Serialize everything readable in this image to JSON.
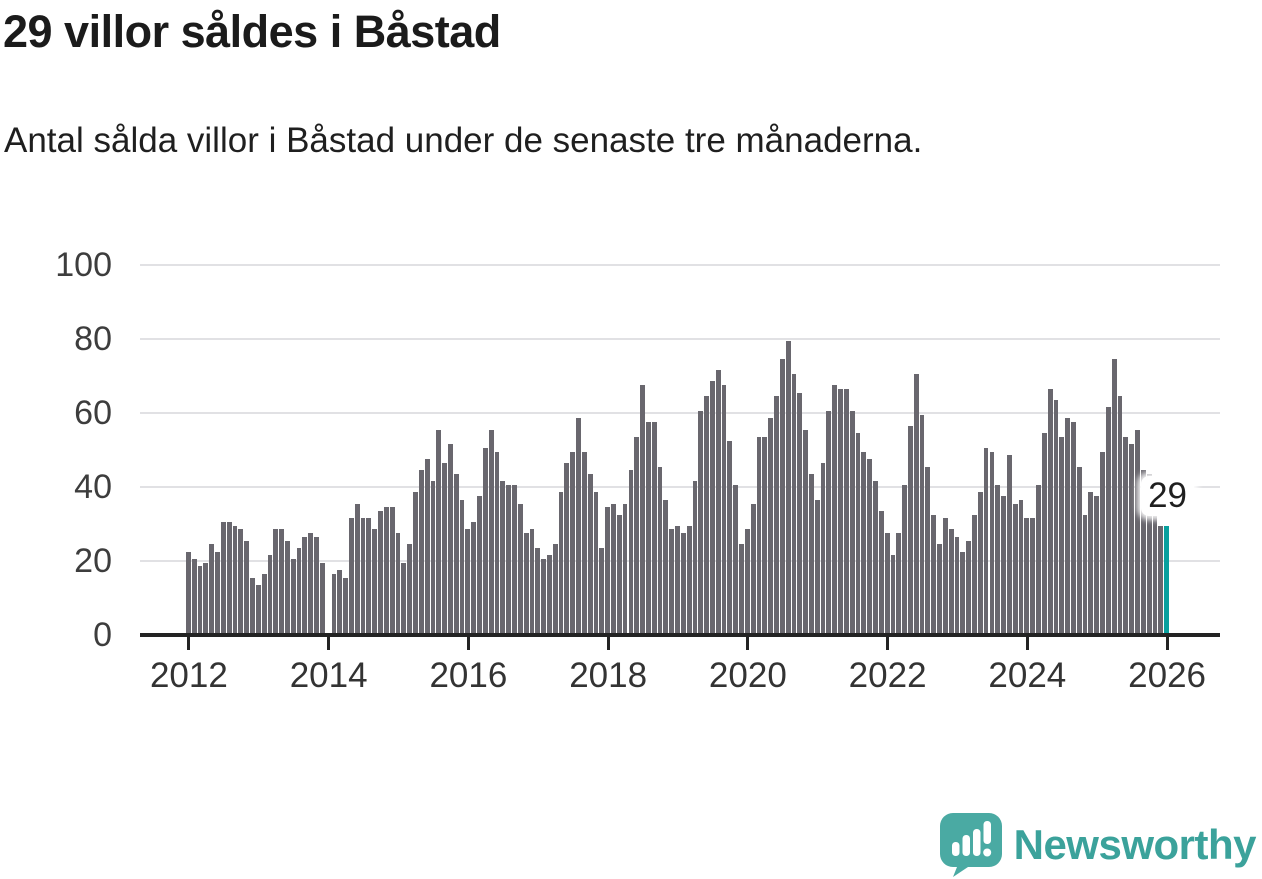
{
  "header": {
    "title": "29 villor såldes i Båstad",
    "subtitle": "Antal sålda villor i Båstad under de senaste tre månaderna."
  },
  "annotation": {
    "text": "29"
  },
  "logo": {
    "text": "Newsworthy",
    "icon": "newsworthy-speech-bubble-chart-icon"
  },
  "colors": {
    "bar": "#69676E",
    "highlight": "#08A09E",
    "gridline": "#e1e1e4",
    "axis": "#232323",
    "title_text": "#1b1b1b",
    "body_text": "#1f1f1f",
    "axis_label": "#3d3d3d",
    "logo_bubble": "#4AAAA3",
    "logo_text": "#3BA29B"
  },
  "chart_data": {
    "type": "bar",
    "title": "29 villor såldes i Båstad",
    "subtitle": "Antal sålda villor i Båstad under de senaste tre månaderna.",
    "ylabel": "",
    "xlabel": "",
    "ylim": [
      0,
      100
    ],
    "y_ticks": [
      0,
      20,
      40,
      60,
      80,
      100
    ],
    "grid": true,
    "start_month": "2012-01",
    "end_month": "2026-01",
    "frequency": "monthly (rolling 3-month count)",
    "x_tick_labels": [
      "2012",
      "2014",
      "2016",
      "2018",
      "2020",
      "2022",
      "2024",
      "2026"
    ],
    "x_tick_month_indices": [
      0,
      24,
      48,
      72,
      96,
      120,
      144,
      168
    ],
    "values": [
      22,
      20,
      18,
      19,
      24,
      22,
      30,
      30,
      29,
      28,
      25,
      15,
      13,
      16,
      21,
      28,
      28,
      25,
      20,
      23,
      26,
      27,
      26,
      19,
      0,
      16,
      17,
      15,
      31,
      35,
      31,
      31,
      28,
      33,
      34,
      34,
      27,
      19,
      24,
      38,
      44,
      47,
      41,
      55,
      46,
      51,
      43,
      36,
      28,
      30,
      37,
      50,
      55,
      49,
      41,
      40,
      40,
      35,
      27,
      28,
      23,
      20,
      21,
      24,
      38,
      46,
      49,
      58,
      49,
      43,
      38,
      23,
      34,
      35,
      32,
      35,
      44,
      53,
      67,
      57,
      57,
      45,
      36,
      28,
      29,
      27,
      29,
      41,
      60,
      64,
      68,
      71,
      67,
      52,
      40,
      24,
      28,
      35,
      53,
      53,
      58,
      64,
      74,
      79,
      70,
      65,
      55,
      43,
      36,
      46,
      60,
      67,
      66,
      66,
      60,
      54,
      49,
      47,
      41,
      33,
      27,
      21,
      27,
      40,
      56,
      70,
      59,
      45,
      32,
      24,
      31,
      28,
      26,
      22,
      25,
      32,
      38,
      50,
      49,
      40,
      37,
      48,
      35,
      36,
      31,
      31,
      40,
      54,
      66,
      63,
      53,
      58,
      57,
      45,
      32,
      38,
      37,
      49,
      61,
      74,
      64,
      53,
      51,
      55,
      44,
      43,
      37,
      29,
      29
    ],
    "highlight_index": 168,
    "highlight_value_label": "29",
    "legend": []
  }
}
